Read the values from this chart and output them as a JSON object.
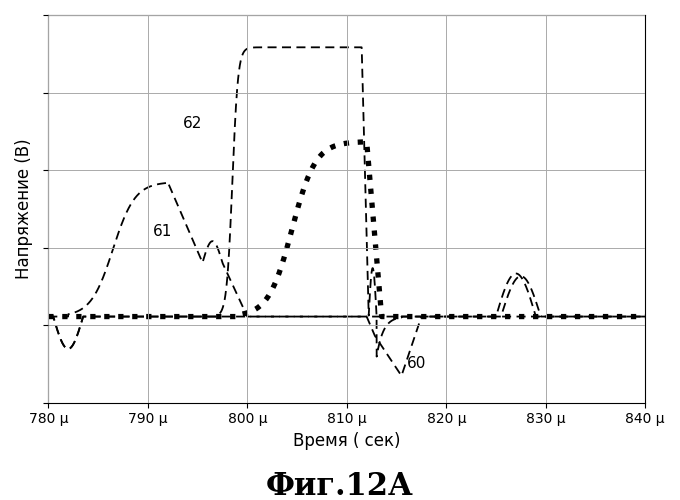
{
  "title": "Фиг.12А",
  "xlabel": "Время ( сек)",
  "ylabel": "Напряжение (В)",
  "xlim": [
    780,
    840
  ],
  "ylim_min": -0.32,
  "ylim_max": 1.12,
  "xticks": [
    780,
    790,
    800,
    810,
    820,
    830,
    840
  ],
  "grid_color": "#aaaaaa",
  "bg_color": "#ffffff",
  "line_color": "#000000",
  "label_60": "60",
  "label_61": "61",
  "label_62": "62",
  "n_yticks": 5
}
